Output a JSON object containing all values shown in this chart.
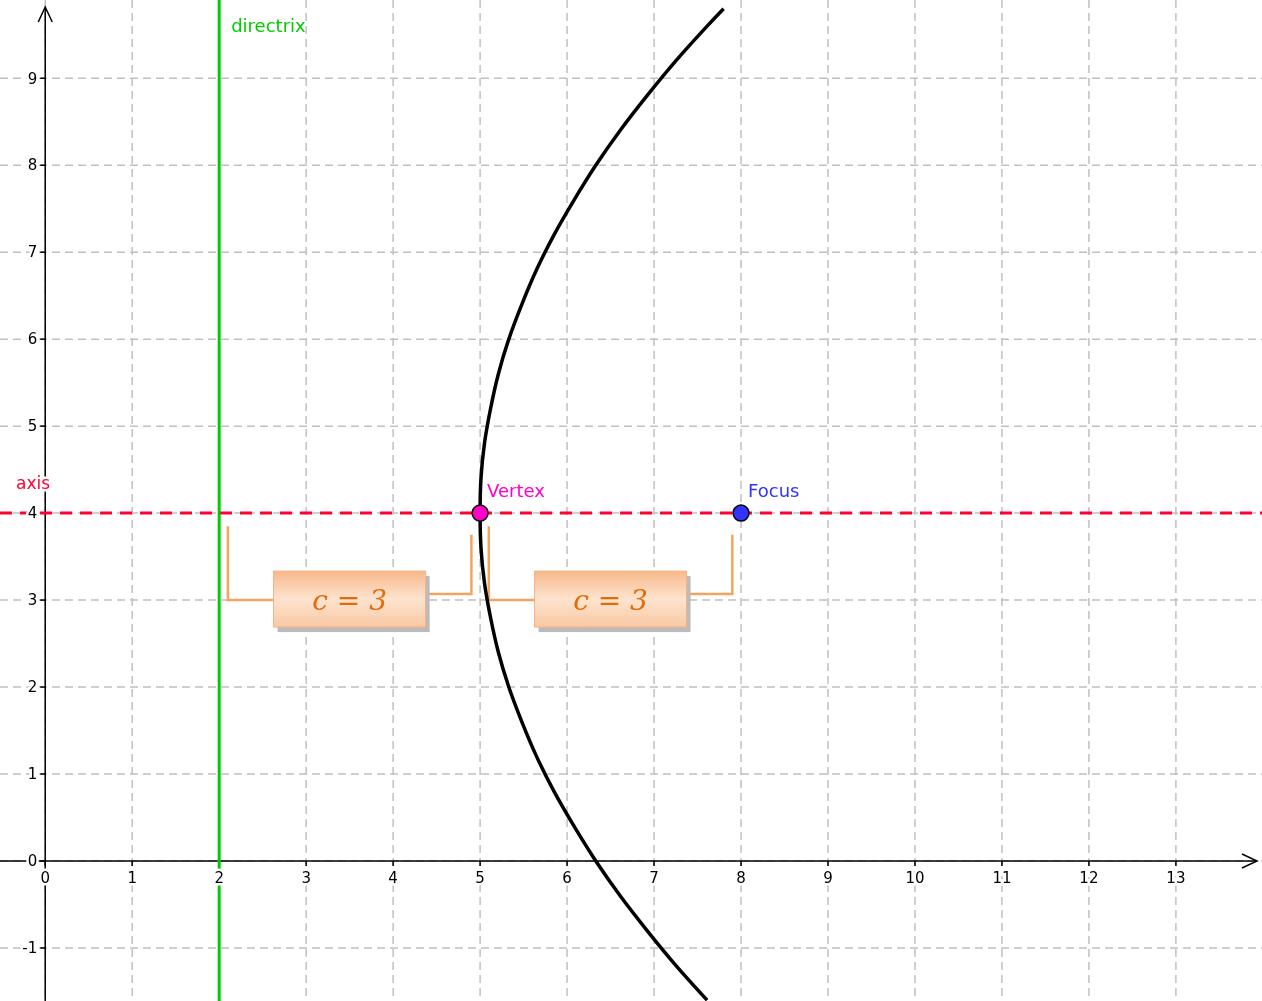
{
  "chart_data": {
    "type": "line",
    "xlim": [
      -0.52,
      13.99
    ],
    "ylim": [
      -1.61,
      9.9
    ],
    "xticks": [
      0,
      1,
      2,
      3,
      4,
      5,
      6,
      7,
      8,
      9,
      10,
      11,
      12,
      13
    ],
    "yticks": [
      -1,
      0,
      1,
      2,
      3,
      4,
      5,
      6,
      7,
      8,
      9
    ],
    "grid": true,
    "series": [
      {
        "type": "line",
        "color": "#000000",
        "x": [
          7.61,
          7.25,
          6.92,
          6.61,
          6.33,
          6.08,
          5.85,
          5.65,
          5.48,
          5.33,
          5.21,
          5.12,
          5.05,
          5.01,
          5,
          5.01,
          5.05,
          5.12,
          5.21,
          5.33,
          5.48,
          5.65,
          5.85,
          6.08,
          6.33,
          6.61,
          6.92,
          7.25,
          7.61,
          7.8
        ],
        "values": [
          -1.6,
          -1.2,
          -0.8,
          -0.4,
          0,
          0.4,
          0.8,
          1.2,
          1.6,
          2,
          2.4,
          2.8,
          3.2,
          3.6,
          4,
          4.4,
          4.8,
          5.2,
          5.6,
          6,
          6.4,
          6.8,
          7.2,
          7.6,
          8,
          8.4,
          8.8,
          9.2,
          9.6,
          9.8
        ]
      },
      {
        "type": "scatter",
        "name": "Vertex",
        "color": "#ff00cc",
        "marker": "circle",
        "x": [
          5
        ],
        "values": [
          4
        ]
      },
      {
        "type": "scatter",
        "name": "Focus",
        "color": "#3333ff",
        "marker": "circle",
        "x": [
          8
        ],
        "values": [
          4
        ]
      }
    ],
    "ref_lines": [
      {
        "axis": "x",
        "value": 2,
        "label": "directrix",
        "color": "#00cc00"
      },
      {
        "axis": "y",
        "value": 4,
        "label": "axis",
        "color": "#ff0033",
        "line_style": "dashed"
      }
    ],
    "annotations": [
      "c = 3",
      "c = 3"
    ]
  }
}
